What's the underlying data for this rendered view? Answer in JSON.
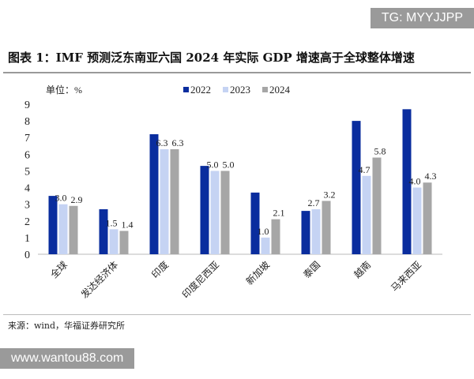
{
  "title": "图表 1：IMF 预测泛东南亚六国 2024 年实际 GDP 增速高于全球整体增速",
  "source": "来源：wind，华福证券研究所",
  "watermark_top": "TG: MYYJJPP",
  "watermark_bottom": "www.wantou88.com",
  "chart_data": {
    "type": "bar",
    "unit_label": "单位：%",
    "categories": [
      "全球",
      "发达经济体",
      "印度",
      "印度尼西亚",
      "新加坡",
      "泰国",
      "越南",
      "马来西亚"
    ],
    "series": [
      {
        "name": "2022",
        "color": "#0a2d9e",
        "values": [
          3.5,
          2.7,
          7.2,
          5.3,
          3.7,
          2.6,
          8.0,
          8.7
        ],
        "labels_shown": false
      },
      {
        "name": "2023",
        "color": "#c5d3f3",
        "values": [
          3.0,
          1.5,
          6.3,
          5.0,
          1.0,
          2.7,
          4.7,
          4.0
        ],
        "labels_shown": true
      },
      {
        "name": "2024",
        "color": "#a6a6a6",
        "values": [
          2.9,
          1.4,
          6.3,
          5.0,
          2.1,
          3.2,
          5.8,
          4.3
        ],
        "labels_shown": true
      }
    ],
    "ylim": [
      0,
      9
    ],
    "yticks": [
      0,
      1,
      2,
      3,
      4,
      5,
      6,
      7,
      8,
      9
    ],
    "grid": false,
    "legend": "top-center"
  }
}
